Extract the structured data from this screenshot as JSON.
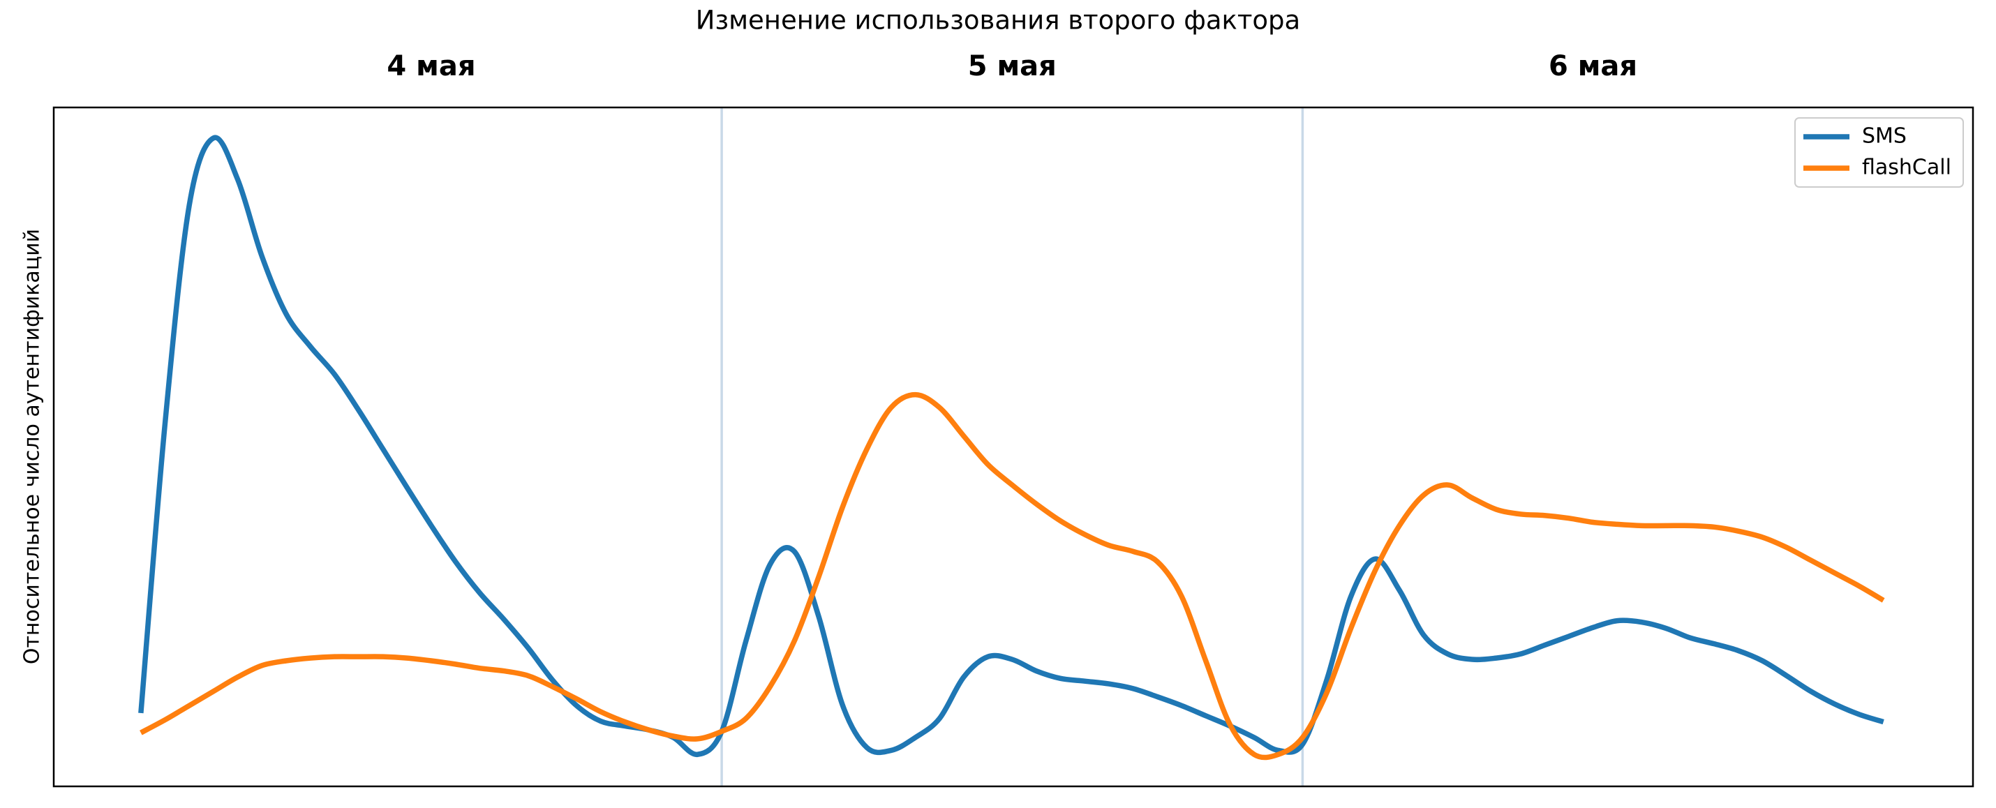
{
  "chart_data": {
    "type": "line",
    "title": "Изменение использования второго фактора",
    "y_label": "Относительное число аутентификаций",
    "day_labels": [
      "4 мая",
      "5 мая",
      "6 мая"
    ],
    "day_boundaries": [
      24,
      48
    ],
    "x": [
      0,
      1,
      2,
      3,
      4,
      5,
      6,
      7,
      8,
      9,
      10,
      11,
      12,
      13,
      14,
      15,
      16,
      17,
      18,
      19,
      20,
      21,
      22,
      23,
      24,
      25,
      26,
      27,
      28,
      29,
      30,
      31,
      32,
      33,
      34,
      35,
      36,
      37,
      38,
      39,
      40,
      41,
      42,
      43,
      44,
      45,
      46,
      47,
      48,
      49,
      50,
      51,
      52,
      53,
      54,
      55,
      56,
      57,
      58,
      59,
      60,
      61,
      62,
      63,
      64,
      65,
      66,
      67,
      68,
      69,
      70,
      71,
      72
    ],
    "xlim": [
      -3.6,
      75.7
    ],
    "ylim": [
      0,
      100
    ],
    "legend": "upper right",
    "grid": false,
    "series": [
      {
        "name": "SMS",
        "color": "#1f77b4",
        "values": [
          10.8,
          53.5,
          85.6,
          95.5,
          89.4,
          78.1,
          69.6,
          64.8,
          60.7,
          55.4,
          49.7,
          44.0,
          38.4,
          33.1,
          28.5,
          24.6,
          20.4,
          15.7,
          11.9,
          9.6,
          8.9,
          8.3,
          7.2,
          4.7,
          8.1,
          21.4,
          32.7,
          34.6,
          25.1,
          11.9,
          5.7,
          5.3,
          7.2,
          10.0,
          16.1,
          19.1,
          18.7,
          17.0,
          15.9,
          15.5,
          15.1,
          14.4,
          13.2,
          11.9,
          10.4,
          8.9,
          7.2,
          5.3,
          6.2,
          15.7,
          28.0,
          33.5,
          28.9,
          22.3,
          19.5,
          18.7,
          18.9,
          19.5,
          20.8,
          22.1,
          23.4,
          24.4,
          24.2,
          23.3,
          21.9,
          21.0,
          20.0,
          18.5,
          16.3,
          14.0,
          12.1,
          10.6,
          9.5
        ]
      },
      {
        "name": "flashCall",
        "color": "#ff7f0e",
        "values": [
          7.9,
          9.8,
          11.9,
          14.0,
          16.1,
          17.8,
          18.5,
          18.9,
          19.1,
          19.1,
          19.1,
          18.9,
          18.5,
          18.0,
          17.4,
          17.0,
          16.3,
          14.7,
          12.9,
          11.0,
          9.5,
          8.3,
          7.4,
          7.0,
          8.1,
          10.0,
          14.7,
          21.4,
          30.8,
          41.2,
          49.7,
          55.8,
          57.7,
          55.8,
          51.6,
          47.4,
          44.4,
          41.6,
          39.1,
          37.1,
          35.5,
          34.6,
          33.1,
          28.0,
          18.5,
          9.1,
          4.7,
          4.7,
          7.2,
          13.8,
          23.3,
          31.8,
          38.4,
          42.9,
          44.4,
          42.5,
          40.8,
          40.1,
          39.9,
          39.5,
          38.9,
          38.6,
          38.4,
          38.4,
          38.4,
          38.2,
          37.6,
          36.7,
          35.2,
          33.3,
          31.4,
          29.5,
          27.4
        ]
      }
    ]
  }
}
